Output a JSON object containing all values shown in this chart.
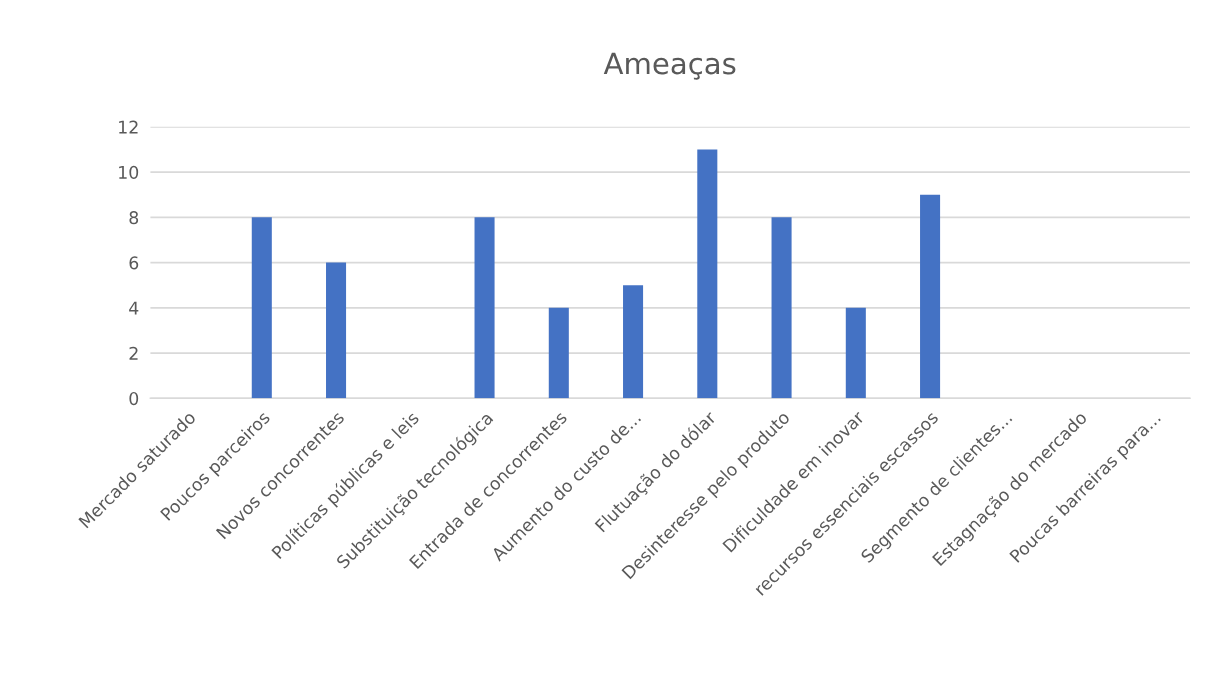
{
  "chart_data": {
    "type": "bar",
    "title": "Ameaças",
    "categories": [
      "Mercado saturado",
      "Poucos parceiros",
      "Novos concorrentes",
      "Políticas públicas e leis",
      "Substituição tecnológica",
      "Entrada de concorrentes",
      "Aumento do custo de...",
      "Flutuação do dólar",
      "Desinteresse pelo produto",
      "Dificuldade em inovar",
      "recursos essenciais escassos",
      "Segmento de clientes...",
      "Estagnação do mercado",
      "Poucas barreiras para..."
    ],
    "values": [
      0,
      8,
      6,
      0,
      8,
      4,
      5,
      11,
      8,
      4,
      9,
      0,
      0,
      0
    ],
    "color": "#4472c4",
    "ylim": [
      0,
      12
    ],
    "yticks": [
      0,
      2,
      4,
      6,
      8,
      10,
      12
    ],
    "grid": "y",
    "legend": false
  }
}
